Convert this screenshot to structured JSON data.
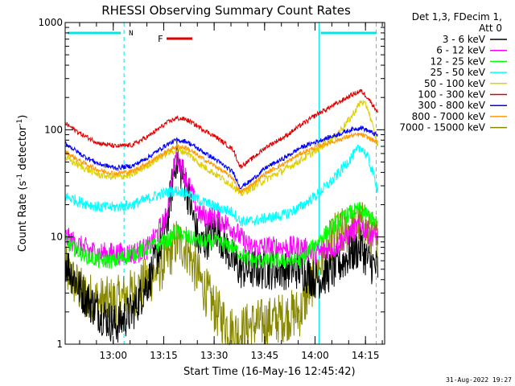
{
  "chart_data": {
    "type": "line",
    "title": "RHESSI Observing Summary Count Rates",
    "xlabel": "Start Time (16-May-16 12:45:42)",
    "ylabel": "Count Rate (s⁻¹ detector⁻¹)",
    "ylabel_main": "Count Rate (s",
    "ylabel_mid": " detector",
    "ylabel_end": ")",
    "ylabel_sup": "-1",
    "yscale": "log",
    "ylim": [
      1,
      1000
    ],
    "xlim_minutes": [
      0,
      95
    ],
    "x_tick_labels": [
      {
        "label": "13:00",
        "minute": 14.3
      },
      {
        "label": "13:15",
        "minute": 29.3
      },
      {
        "label": "13:30",
        "minute": 44.3
      },
      {
        "label": "13:45",
        "minute": 59.3
      },
      {
        "label": "14:00",
        "minute": 74.3
      },
      {
        "label": "14:15",
        "minute": 89.3
      }
    ],
    "y_tick_labels": [
      "1",
      "10",
      "100",
      "1000"
    ],
    "legend_header": [
      "Det 1,3, FDecim 1,",
      "Att 0"
    ],
    "legend_position": "right",
    "markers": [
      {
        "label": "N",
        "color": "#00e5e5"
      },
      {
        "label": "F",
        "color": "#e00000"
      }
    ],
    "night_boundaries_minutes": [
      17.5,
      75.5,
      92.5
    ],
    "x": [
      0,
      5,
      10,
      15,
      20,
      25,
      30,
      33,
      36,
      40,
      45,
      50,
      52,
      55,
      60,
      65,
      70,
      75,
      80,
      85,
      88,
      90,
      93
    ],
    "series": [
      {
        "name": "3 - 6 keV",
        "color": "#000000",
        "values": [
          6,
          3,
          2,
          1.5,
          2,
          4,
          12,
          55,
          30,
          8,
          12,
          6,
          5,
          5,
          5,
          5,
          5,
          4,
          5,
          7,
          8,
          6,
          5
        ]
      },
      {
        "name": "6 - 12 keV",
        "color": "#ff00ff",
        "values": [
          10,
          8,
          7,
          7,
          7,
          8,
          15,
          60,
          35,
          16,
          15,
          12,
          10,
          8,
          8,
          8,
          8,
          7,
          8,
          11,
          13,
          11,
          10
        ]
      },
      {
        "name": "12 - 25 keV",
        "color": "#00ff00",
        "values": [
          9,
          7,
          6,
          6,
          7,
          8,
          9,
          11,
          10,
          9,
          9,
          8,
          7,
          6,
          6,
          6,
          6,
          9,
          13,
          17,
          18,
          16,
          13
        ]
      },
      {
        "name": "25 - 50 keV",
        "color": "#00ffff",
        "values": [
          24,
          21,
          19,
          19,
          20,
          23,
          26,
          27,
          26,
          22,
          19,
          17,
          14,
          14,
          15,
          16,
          19,
          25,
          35,
          55,
          70,
          55,
          28
        ]
      },
      {
        "name": "50 - 100 keV",
        "color": "#e0d000",
        "values": [
          55,
          45,
          38,
          36,
          38,
          48,
          60,
          65,
          62,
          48,
          38,
          30,
          25,
          28,
          35,
          42,
          52,
          65,
          85,
          130,
          185,
          160,
          70
        ]
      },
      {
        "name": "100 - 300 keV",
        "color": "#e00000",
        "values": [
          115,
          90,
          75,
          70,
          72,
          88,
          115,
          128,
          125,
          105,
          85,
          65,
          45,
          52,
          70,
          85,
          110,
          140,
          170,
          210,
          230,
          200,
          145
        ]
      },
      {
        "name": "300 - 800 keV",
        "color": "#0000ff",
        "values": [
          75,
          58,
          48,
          44,
          46,
          56,
          72,
          80,
          78,
          65,
          52,
          40,
          29,
          33,
          45,
          54,
          68,
          78,
          88,
          100,
          105,
          98,
          88
        ]
      },
      {
        "name": "800 - 7000 keV",
        "color": "#ff9900",
        "values": [
          62,
          50,
          42,
          39,
          41,
          50,
          62,
          70,
          68,
          56,
          45,
          35,
          26,
          30,
          40,
          48,
          60,
          70,
          78,
          88,
          90,
          85,
          75
        ]
      },
      {
        "name": "7000 - 15000 keV",
        "color": "#888800",
        "values": [
          5,
          3,
          2.5,
          2.5,
          3,
          4,
          6,
          9,
          8,
          4,
          2,
          1.3,
          1.3,
          1.5,
          1.6,
          1.8,
          2,
          5,
          10,
          12,
          13,
          11,
          9
        ]
      }
    ],
    "grid": false
  },
  "timestamp": "31-Aug-2022 19:27"
}
